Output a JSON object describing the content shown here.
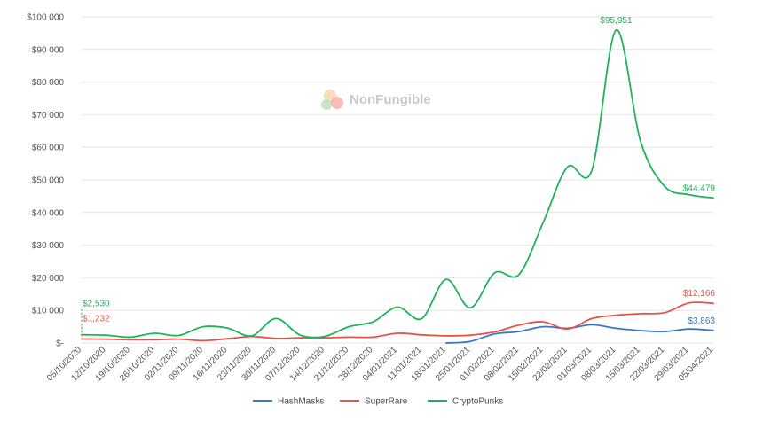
{
  "watermark": {
    "text": "NonFungible"
  },
  "chart_data": {
    "type": "line",
    "title": "",
    "xlabel": "",
    "ylabel": "",
    "ylim": [
      0,
      100000
    ],
    "y_ticks": [
      0,
      10000,
      20000,
      30000,
      40000,
      50000,
      60000,
      70000,
      80000,
      90000,
      100000
    ],
    "y_tick_labels": [
      "$-",
      "$10 000",
      "$20 000",
      "$30 000",
      "$40 000",
      "$50 000",
      "$60 000",
      "$70 000",
      "$80 000",
      "$90 000",
      "$100 000"
    ],
    "grid": "horizontal",
    "legend_position": "bottom-center",
    "categories": [
      "05/10/2020",
      "12/10/2020",
      "19/10/2020",
      "26/10/2020",
      "02/11/2020",
      "09/11/2020",
      "16/11/2020",
      "23/11/2020",
      "30/11/2020",
      "07/12/2020",
      "14/12/2020",
      "21/12/2020",
      "28/12/2020",
      "04/01/2021",
      "11/01/2021",
      "18/01/2021",
      "25/01/2021",
      "01/02/2021",
      "08/02/2021",
      "15/02/2021",
      "22/02/2021",
      "01/03/2021",
      "08/03/2021",
      "15/03/2021",
      "22/03/2021",
      "29/03/2021",
      "05/04/2021"
    ],
    "series": [
      {
        "name": "HashMasks",
        "color": "#3a78c2",
        "values": [
          null,
          null,
          null,
          null,
          null,
          null,
          null,
          null,
          null,
          null,
          null,
          null,
          null,
          null,
          null,
          0,
          500,
          2800,
          3500,
          5000,
          4500,
          5600,
          4500,
          3800,
          3500,
          4300,
          3863
        ],
        "labels": [
          {
            "index": 26,
            "text": "$3,863"
          }
        ]
      },
      {
        "name": "SuperRare",
        "color": "#e0564b",
        "values": [
          1232,
          1200,
          1000,
          1000,
          1200,
          700,
          1300,
          2000,
          1400,
          1600,
          1600,
          1800,
          1800,
          3000,
          2500,
          2200,
          2400,
          3400,
          5500,
          6500,
          4300,
          7500,
          8500,
          9000,
          9300,
          12300,
          12166
        ],
        "labels": [
          {
            "index": 0,
            "text": "$1,232"
          },
          {
            "index": 26,
            "text": "$12,166"
          }
        ]
      },
      {
        "name": "CryptoPunks",
        "color": "#1fb25a",
        "values": [
          2530,
          2400,
          1800,
          3000,
          2300,
          5000,
          4600,
          2200,
          7500,
          2400,
          2000,
          5000,
          6500,
          11000,
          7500,
          19500,
          10800,
          21500,
          21000,
          37000,
          54000,
          53000,
          95951,
          62000,
          48000,
          45500,
          44479
        ],
        "labels": [
          {
            "index": 0,
            "text": "$2,530"
          },
          {
            "index": 22,
            "text": "$95,951"
          },
          {
            "index": 26,
            "text": "$44,479"
          }
        ]
      }
    ]
  }
}
